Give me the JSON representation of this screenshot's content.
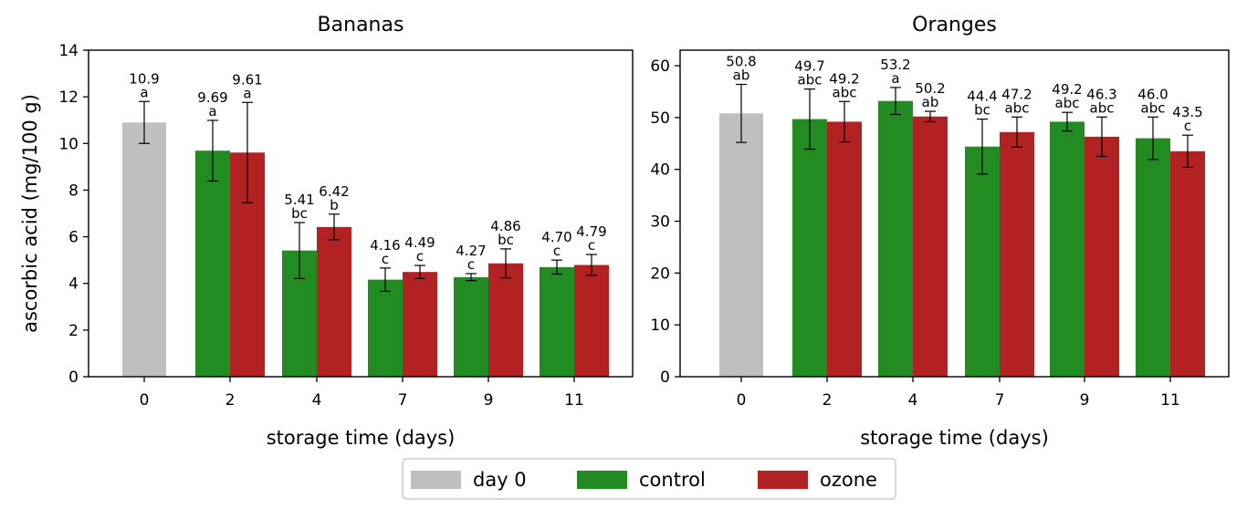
{
  "chart_data": [
    {
      "type": "bar",
      "title": "Bananas",
      "xlabel": "storage time (days)",
      "ylabel": "ascorbic acid (mg/100 g)",
      "ylim": [
        0,
        14
      ],
      "yticks": [
        0,
        2,
        4,
        6,
        8,
        10,
        12,
        14
      ],
      "categories": [
        "0",
        "2",
        "4",
        "7",
        "9",
        "11"
      ],
      "series": [
        {
          "name": "day 0",
          "color": "#bfbfbf",
          "values": [
            10.9,
            null,
            null,
            null,
            null,
            null
          ],
          "errors": [
            0.9,
            null,
            null,
            null,
            null,
            null
          ],
          "labels": [
            "10.9",
            "",
            "",
            "",
            "",
            ""
          ],
          "letters": [
            "a",
            "",
            "",
            "",
            "",
            ""
          ]
        },
        {
          "name": "control",
          "color": "#228b22",
          "values": [
            null,
            9.69,
            5.41,
            4.16,
            4.27,
            4.7
          ],
          "errors": [
            null,
            1.3,
            1.2,
            0.5,
            0.15,
            0.3
          ],
          "labels": [
            "",
            "9.69",
            "5.41",
            "4.16",
            "4.27",
            "4.70"
          ],
          "letters": [
            "",
            "a",
            "bc",
            "c",
            "c",
            "c"
          ]
        },
        {
          "name": "ozone",
          "color": "#b22222",
          "values": [
            null,
            9.61,
            6.42,
            4.49,
            4.86,
            4.79
          ],
          "errors": [
            null,
            2.15,
            0.55,
            0.28,
            0.62,
            0.45
          ],
          "labels": [
            "",
            "9.61",
            "6.42",
            "4.49",
            "4.86",
            "4.79"
          ],
          "letters": [
            "",
            "a",
            "b",
            "c",
            "bc",
            "c"
          ]
        }
      ]
    },
    {
      "type": "bar",
      "title": "Oranges",
      "xlabel": "storage time (days)",
      "ylabel": "",
      "ylim": [
        0,
        63
      ],
      "yticks": [
        0,
        10,
        20,
        30,
        40,
        50,
        60
      ],
      "categories": [
        "0",
        "2",
        "4",
        "7",
        "9",
        "11"
      ],
      "series": [
        {
          "name": "day 0",
          "color": "#bfbfbf",
          "values": [
            50.8,
            null,
            null,
            null,
            null,
            null
          ],
          "errors": [
            5.6,
            null,
            null,
            null,
            null,
            null
          ],
          "labels": [
            "50.8",
            "",
            "",
            "",
            "",
            ""
          ],
          "letters": [
            "ab",
            "",
            "",
            "",
            "",
            ""
          ]
        },
        {
          "name": "control",
          "color": "#228b22",
          "values": [
            null,
            49.7,
            53.2,
            44.4,
            49.2,
            46.0
          ],
          "errors": [
            null,
            5.8,
            2.6,
            5.3,
            1.8,
            4.1
          ],
          "labels": [
            "",
            "49.7",
            "53.2",
            "44.4",
            "49.2",
            "46.0"
          ],
          "letters": [
            "",
            "abc",
            "a",
            "bc",
            "abc",
            "abc"
          ]
        },
        {
          "name": "ozone",
          "color": "#b22222",
          "values": [
            null,
            49.2,
            50.2,
            47.2,
            46.3,
            43.5
          ],
          "errors": [
            null,
            3.9,
            1.0,
            2.9,
            3.8,
            3.1
          ],
          "labels": [
            "",
            "49.2",
            "50.2",
            "47.2",
            "46.3",
            "43.5"
          ],
          "letters": [
            "",
            "abc",
            "ab",
            "abc",
            "abc",
            "c"
          ]
        }
      ]
    }
  ],
  "legend": {
    "placement": "bottom-center",
    "items": [
      {
        "label": "day 0",
        "color": "#bfbfbf"
      },
      {
        "label": "control",
        "color": "#228b22"
      },
      {
        "label": "ozone",
        "color": "#b22222"
      }
    ]
  }
}
